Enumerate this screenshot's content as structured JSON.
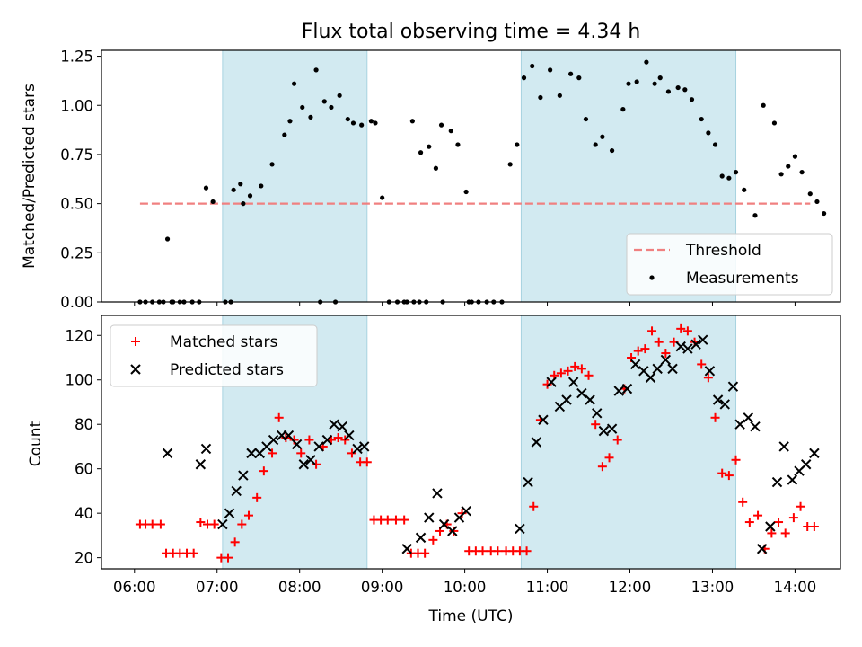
{
  "chart_data": [
    {
      "type": "scatter",
      "title": "Flux total observing time = 4.34 h",
      "xlabel": "",
      "ylabel": "Matched/Predicted stars",
      "xlim": [
        "05:36",
        "14:33"
      ],
      "ylim": [
        0,
        1.28
      ],
      "yticks": [
        0,
        0.25,
        0.5,
        0.75,
        1.0,
        1.25
      ],
      "ytick_labels": [
        "0.00",
        "0.25",
        "0.50",
        "0.75",
        "1.00",
        "1.25"
      ],
      "shaded_intervals": [
        [
          "07:04",
          "08:49"
        ],
        [
          "10:41",
          "13:17"
        ]
      ],
      "threshold": {
        "name": "Threshold",
        "value": 0.5,
        "x_range": [
          "06:04",
          "14:11"
        ]
      },
      "legend": {
        "position": "lower right",
        "entries": [
          "Threshold",
          "Measurements"
        ]
      },
      "series": [
        {
          "name": "Measurements",
          "x": [
            "06:04",
            "06:08",
            "06:13",
            "06:18",
            "06:24",
            "06:28",
            "06:36",
            "06:42",
            "06:47",
            "06:52",
            "06:57",
            "07:06",
            "07:12",
            "07:24",
            "07:32",
            "07:40",
            "07:53",
            "07:49",
            "07:56",
            "08:02",
            "08:08",
            "08:12",
            "08:18",
            "08:23",
            "08:29",
            "08:35",
            "08:39",
            "08:45",
            "08:52",
            "08:55",
            "09:00",
            "09:05",
            "09:11",
            "09:16",
            "09:22",
            "09:28",
            "09:34",
            "09:39",
            "09:43",
            "09:50",
            "09:55",
            "10:01",
            "10:05",
            "10:10",
            "10:16",
            "10:21",
            "10:27",
            "10:33",
            "10:38",
            "10:43",
            "10:49",
            "10:55",
            "11:02",
            "11:09",
            "11:17",
            "11:23",
            "11:28",
            "11:35",
            "11:40",
            "11:47",
            "11:55",
            "11:59",
            "12:05",
            "12:12",
            "12:18",
            "12:22",
            "12:28",
            "12:35",
            "12:40",
            "12:45",
            "12:52",
            "12:57",
            "13:02",
            "13:07",
            "13:12",
            "13:17",
            "13:23",
            "13:31",
            "13:37",
            "13:45",
            "13:50",
            "13:55",
            "14:00",
            "14:05",
            "14:11",
            "14:16",
            "14:21",
            "06:21",
            "06:27",
            "06:33",
            "07:17",
            "07:19",
            "07:10",
            "08:15",
            "08:26",
            "09:18",
            "09:23",
            "09:27",
            "09:32",
            "09:44",
            "10:03"
          ],
          "y": [
            0,
            0,
            0,
            0,
            0.32,
            0,
            0,
            0,
            0,
            0.58,
            0.51,
            0,
            0.57,
            0.54,
            0.59,
            0.7,
            0.92,
            0.85,
            1.11,
            0.99,
            0.94,
            1.18,
            1.02,
            0.99,
            1.05,
            0.93,
            0.91,
            0.9,
            0.92,
            0.91,
            0.53,
            0,
            0,
            0,
            0.92,
            0.76,
            0.79,
            0.68,
            0.9,
            0.87,
            0.8,
            0.56,
            0,
            0,
            0,
            0,
            0,
            0.7,
            0.8,
            1.14,
            1.2,
            1.04,
            1.18,
            1.05,
            1.16,
            1.14,
            0.93,
            0.8,
            0.84,
            0.77,
            0.98,
            1.11,
            1.12,
            1.22,
            1.11,
            1.14,
            1.07,
            1.09,
            1.08,
            1.03,
            0.93,
            0.86,
            0.8,
            0.64,
            0.63,
            0.66,
            0.57,
            0.44,
            1.0,
            0.91,
            0.65,
            0.69,
            0.74,
            0.66,
            0.55,
            0.51,
            0.45,
            0,
            0,
            0,
            0.6,
            0.5,
            0,
            0,
            0,
            0,
            0,
            0,
            0,
            0,
            0
          ]
        }
      ]
    },
    {
      "type": "scatter",
      "title": "",
      "xlabel": "Time (UTC)",
      "ylabel": "Count",
      "xlim": [
        "05:36",
        "14:33"
      ],
      "ylim": [
        15,
        129
      ],
      "yticks": [
        20,
        40,
        60,
        80,
        100,
        120
      ],
      "xticks": [
        "06:00",
        "07:00",
        "08:00",
        "09:00",
        "10:00",
        "11:00",
        "12:00",
        "13:00",
        "14:00"
      ],
      "shaded_intervals": [
        [
          "07:04",
          "08:49"
        ],
        [
          "10:41",
          "13:17"
        ]
      ],
      "legend": {
        "position": "upper left",
        "entries": [
          "Matched stars",
          "Predicted stars"
        ]
      },
      "series": [
        {
          "name": "Matched stars",
          "marker": "+",
          "color": "#ff0000",
          "x": [
            "06:04",
            "06:08",
            "06:13",
            "06:19",
            "06:23",
            "06:28",
            "06:33",
            "06:38",
            "06:43",
            "06:48",
            "06:53",
            "06:58",
            "07:03",
            "07:08",
            "07:13",
            "07:18",
            "07:23",
            "07:29",
            "07:34",
            "07:40",
            "07:45",
            "07:50",
            "07:56",
            "08:01",
            "08:07",
            "08:12",
            "08:17",
            "08:23",
            "08:28",
            "08:33",
            "08:38",
            "08:44",
            "08:49",
            "08:54",
            "08:59",
            "09:04",
            "09:10",
            "09:16",
            "09:21",
            "09:26",
            "09:31",
            "09:37",
            "09:42",
            "09:47",
            "09:52",
            "09:58",
            "10:03",
            "10:08",
            "10:13",
            "10:19",
            "10:24",
            "10:30",
            "10:35",
            "10:40",
            "10:45",
            "10:50",
            "10:55",
            "11:00",
            "11:05",
            "11:10",
            "11:15",
            "11:20",
            "11:25",
            "11:30",
            "11:35",
            "11:40",
            "11:45",
            "11:51",
            "11:56",
            "12:01",
            "12:06",
            "12:11",
            "12:16",
            "12:21",
            "12:26",
            "12:32",
            "12:37",
            "12:42",
            "12:47",
            "12:52",
            "12:57",
            "13:02",
            "13:07",
            "13:12",
            "13:17",
            "13:22",
            "13:27",
            "13:33",
            "13:38",
            "13:43",
            "13:48",
            "13:53",
            "13:59",
            "14:04",
            "14:09",
            "14:14"
          ],
          "y": [
            35,
            35,
            35,
            35,
            22,
            22,
            22,
            22,
            22,
            36,
            35,
            35,
            20,
            20,
            27,
            35,
            39,
            47,
            59,
            67,
            83,
            74,
            73,
            67,
            73,
            62,
            70,
            73,
            74,
            73,
            67,
            63,
            63,
            37,
            37,
            37,
            37,
            37,
            22,
            22,
            22,
            28,
            32,
            35,
            32,
            40,
            23,
            23,
            23,
            23,
            23,
            23,
            23,
            23,
            23,
            43,
            82,
            98,
            102,
            103,
            104,
            106,
            105,
            102,
            80,
            61,
            65,
            73,
            96,
            110,
            113,
            114,
            122,
            117,
            112,
            117,
            123,
            122,
            117,
            107,
            101,
            83,
            58,
            57,
            64,
            45,
            36,
            39,
            24,
            31,
            36,
            31,
            38,
            43,
            34,
            34
          ]
        },
        {
          "name": "Predicted stars",
          "marker": "x",
          "color": "#000000",
          "x": [
            "06:24",
            "06:48",
            "06:52",
            "07:04",
            "07:09",
            "07:14",
            "07:19",
            "07:25",
            "07:31",
            "07:36",
            "07:41",
            "07:47",
            "07:52",
            "07:58",
            "08:03",
            "08:08",
            "08:14",
            "08:20",
            "08:25",
            "08:31",
            "08:36",
            "08:42",
            "08:47",
            "09:18",
            "09:28",
            "09:34",
            "09:40",
            "09:45",
            "09:51",
            "09:56",
            "10:01",
            "10:40",
            "10:46",
            "10:52",
            "10:57",
            "11:03",
            "11:09",
            "11:14",
            "11:19",
            "11:25",
            "11:31",
            "11:36",
            "11:41",
            "11:47",
            "11:52",
            "11:58",
            "12:04",
            "12:10",
            "12:15",
            "12:20",
            "12:26",
            "12:31",
            "12:37",
            "12:42",
            "12:48",
            "12:53",
            "12:58",
            "13:04",
            "13:09",
            "13:15",
            "13:20",
            "13:26",
            "13:31",
            "13:36",
            "13:42",
            "13:47",
            "13:52",
            "13:58",
            "14:03",
            "14:08",
            "14:14"
          ],
          "y": [
            67,
            62,
            69,
            35,
            40,
            50,
            57,
            67,
            67,
            70,
            73,
            75,
            75,
            71,
            62,
            64,
            70,
            73,
            80,
            79,
            75,
            69,
            70,
            24,
            29,
            38,
            49,
            35,
            32,
            38,
            41,
            33,
            54,
            72,
            82,
            99,
            88,
            91,
            99,
            94,
            91,
            85,
            77,
            78,
            95,
            96,
            107,
            104,
            101,
            105,
            109,
            105,
            115,
            114,
            116,
            118,
            104,
            91,
            89,
            97,
            80,
            83,
            79,
            24,
            34,
            54,
            70,
            55,
            59,
            62,
            67
          ]
        }
      ]
    }
  ]
}
